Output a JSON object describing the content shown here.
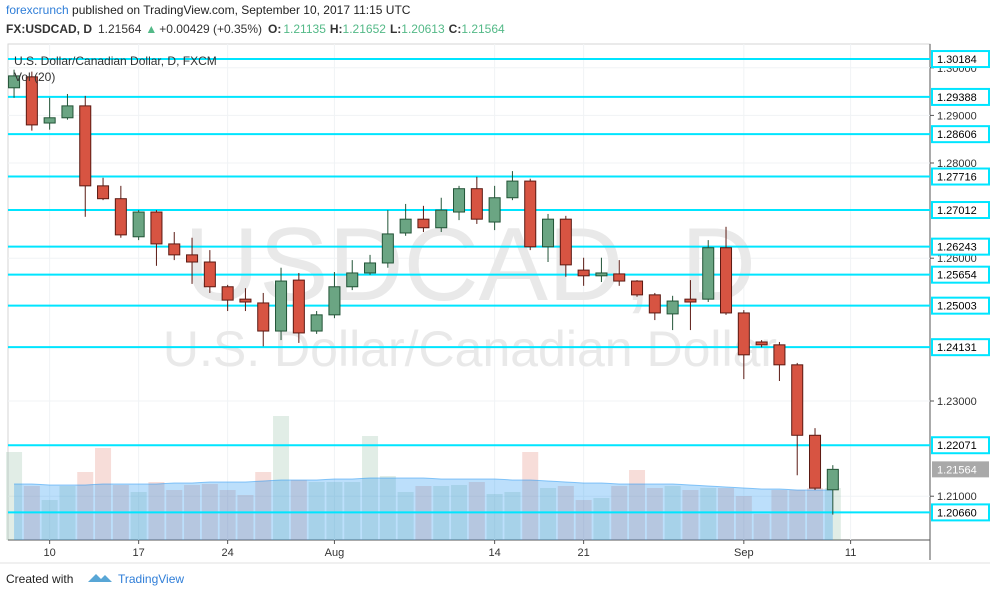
{
  "header": {
    "author": "forexcrunch",
    "published": " published on TradingView.com, September 10, 2017 11:15 UTC",
    "symbol": "FX:USDCAD, D",
    "last": "1.21564",
    "arrow": "▲",
    "change": "+0.00429 (+0.35%)",
    "o_label": "O:",
    "o": "1.21135",
    "h_label": "H:",
    "h": "1.21652",
    "l_label": "L:",
    "l": "1.20613",
    "c_label": "C:",
    "c": "1.21564"
  },
  "chart_data": {
    "type": "candlestick",
    "title": "U.S. Dollar/Canadian Dollar, D, FXCM",
    "volume_label": "Vol (20)",
    "watermark": "USDCAD, D",
    "watermark_sub": "U.S. Dollar/Canadian Dollar",
    "open": [
      1.2958,
      1.2981,
      1.2884,
      1.2895,
      1.292,
      1.2752,
      1.2725,
      1.2645,
      1.2697,
      1.263,
      1.2607,
      1.2592,
      1.254,
      1.2514,
      1.2506,
      1.2447,
      1.2554,
      1.2447,
      1.2481,
      1.254,
      1.2569,
      1.259,
      1.2653,
      1.2682,
      1.2664,
      1.2697,
      1.2746,
      1.2676,
      1.2727,
      1.2762,
      1.2624,
      1.2682,
      1.2575,
      1.2563,
      1.2567,
      1.2552,
      1.2523,
      1.2483,
      1.2514,
      1.2514,
      1.2622,
      1.2485,
      1.2424,
      1.2418,
      1.2376,
      1.2228,
      1.21135
    ],
    "high": [
      1.2996,
      1.2992,
      1.2937,
      1.2945,
      1.2941,
      1.2769,
      1.2752,
      1.2701,
      1.2701,
      1.2655,
      1.2643,
      1.2617,
      1.2544,
      1.2537,
      1.2527,
      1.258,
      1.2569,
      1.2489,
      1.2571,
      1.2596,
      1.2607,
      1.2701,
      1.2714,
      1.271,
      1.2727,
      1.2752,
      1.2771,
      1.2752,
      1.2783,
      1.2767,
      1.2693,
      1.2689,
      1.2601,
      1.2601,
      1.2596,
      1.2554,
      1.2527,
      1.2521,
      1.2554,
      1.2638,
      1.2666,
      1.2491,
      1.2428,
      1.2424,
      1.238,
      1.2243,
      1.21652
    ],
    "low": [
      1.2937,
      1.2868,
      1.287,
      1.2891,
      1.2687,
      1.2722,
      1.2643,
      1.2638,
      1.2584,
      1.2596,
      1.2546,
      1.2527,
      1.2489,
      1.2489,
      1.2415,
      1.2428,
      1.2422,
      1.2441,
      1.2474,
      1.2533,
      1.2565,
      1.258,
      1.2647,
      1.2655,
      1.2655,
      1.268,
      1.2672,
      1.2659,
      1.2722,
      1.2617,
      1.2592,
      1.2561,
      1.2542,
      1.255,
      1.2542,
      1.2519,
      1.247,
      1.2449,
      1.2449,
      1.2508,
      1.2481,
      1.2346,
      1.2413,
      1.2342,
      1.2144,
      1.2113,
      1.20613
    ],
    "close": [
      1.2983,
      1.288,
      1.2895,
      1.292,
      1.2752,
      1.2725,
      1.2649,
      1.2697,
      1.263,
      1.2607,
      1.2592,
      1.254,
      1.2512,
      1.2508,
      1.2447,
      1.2552,
      1.2443,
      1.2481,
      1.254,
      1.2569,
      1.259,
      1.2651,
      1.2682,
      1.2664,
      1.2701,
      1.2746,
      1.2682,
      1.2727,
      1.2762,
      1.2624,
      1.2682,
      1.2586,
      1.2563,
      1.2569,
      1.2552,
      1.2523,
      1.2485,
      1.251,
      1.2508,
      1.2622,
      1.2485,
      1.2397,
      1.2418,
      1.2376,
      1.2228,
      1.2117,
      1.21564
    ],
    "volume": [
      88,
      54,
      40,
      54,
      68,
      92,
      55,
      48,
      58,
      50,
      55,
      56,
      50,
      45,
      68,
      124,
      60,
      58,
      58,
      58,
      104,
      64,
      48,
      54,
      54,
      55,
      58,
      46,
      48,
      88,
      52,
      54,
      40,
      42,
      54,
      70,
      52,
      54,
      50,
      52,
      52,
      44,
      26,
      50,
      50,
      52,
      52
    ],
    "volume_ma": [
      56,
      56,
      55,
      55,
      55,
      56,
      56,
      56,
      56,
      57,
      57,
      58,
      58,
      58,
      59,
      60,
      60,
      60,
      61,
      61,
      62,
      62,
      62,
      62,
      61,
      61,
      61,
      61,
      60,
      60,
      59,
      58,
      57,
      57,
      56,
      56,
      56,
      56,
      55,
      54,
      53,
      52,
      51,
      51,
      50,
      50,
      50
    ],
    "volume_ylim": [
      0,
      120
    ],
    "up_color": "#6ba583",
    "down_color": "#d75442",
    "level_color": "#00e5ff",
    "volume_ma_color": "#2196f3",
    "levels": [
      1.30184,
      1.29388,
      1.28606,
      1.27716,
      1.27012,
      1.26243,
      1.25654,
      1.25003,
      1.24131,
      1.22071,
      {
        "value": 1.2066,
        "label": "1.20660"
      }
    ],
    "ylim": [
      1.2008,
      1.305
    ],
    "yticks": [
      {
        "value": 1.21,
        "label": "1.21000"
      },
      {
        "value": 1.23,
        "label": "1.23000"
      },
      {
        "value": 1.26,
        "label": "1.26000"
      },
      {
        "value": 1.28,
        "label": "1.28000"
      },
      {
        "value": 1.29,
        "label": "1.29000"
      },
      {
        "value": 1.3,
        "label": "1.30000"
      }
    ],
    "xlim": [
      -0.34,
      51.46
    ],
    "xticks": [
      {
        "value": 2,
        "label": "10"
      },
      {
        "value": 7,
        "label": "17"
      },
      {
        "value": 12,
        "label": "24"
      },
      {
        "value": 18,
        "label": "Aug"
      },
      {
        "value": 27,
        "label": "14"
      },
      {
        "value": 32,
        "label": "21"
      },
      {
        "value": 41,
        "label": "Sep"
      },
      {
        "value": 47,
        "label": "11"
      }
    ],
    "grid": true
  },
  "footer": {
    "created": "Created with",
    "brand": "TradingView"
  }
}
